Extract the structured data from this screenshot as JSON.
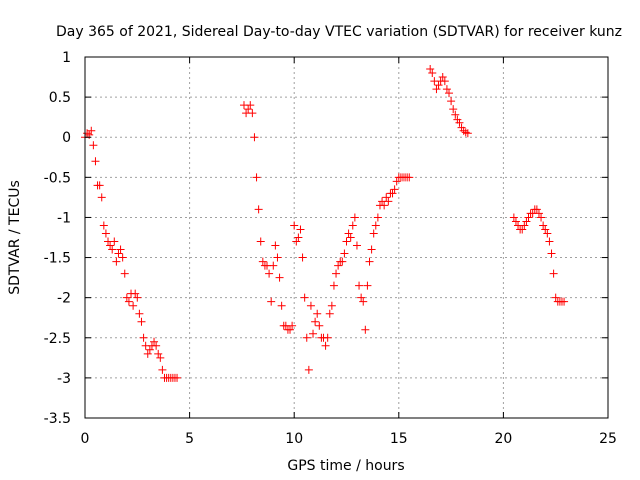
{
  "chart_data": {
    "type": "scatter",
    "title": "Day 365 of 2021, Sidereal Day-to-day VTEC variation (SDTVAR) for receiver kunz",
    "xlabel": "GPS time / hours",
    "ylabel": "SDTVAR / TECUs",
    "xlim": [
      0,
      25
    ],
    "ylim": [
      -3.5,
      1
    ],
    "xticks": [
      0,
      5,
      10,
      15,
      20,
      25
    ],
    "yticks": [
      1,
      0.5,
      0,
      -0.5,
      -1,
      -1.5,
      -2,
      -2.5,
      -3,
      -3.5
    ],
    "xtick_labels": [
      "0",
      "5",
      "10",
      "15",
      "20",
      "25"
    ],
    "ytick_labels": [
      "1",
      "0.5",
      "0",
      "-0.5",
      "-1",
      "-1.5",
      "-2",
      "-2.5",
      "-3",
      "-3.5"
    ],
    "grid": true,
    "marker": "plus",
    "color": "#ff0000",
    "series": [
      {
        "name": "segment-1",
        "x": [
          0.0,
          0.1,
          0.2,
          0.3,
          0.4,
          0.5,
          0.6,
          0.7,
          0.8,
          0.9,
          1.0,
          1.1,
          1.2,
          1.3,
          1.4,
          1.5,
          1.6,
          1.7,
          1.8,
          1.9,
          2.0,
          2.1,
          2.2,
          2.3,
          2.4,
          2.5,
          2.6,
          2.7,
          2.8,
          2.9,
          3.0,
          3.1,
          3.2,
          3.3,
          3.4,
          3.5,
          3.6,
          3.7,
          3.8,
          3.9,
          4.0,
          4.1,
          4.2,
          4.3,
          4.4
        ],
        "y": [
          0.0,
          0.05,
          0.03,
          0.08,
          -0.1,
          -0.3,
          -0.6,
          -0.6,
          -0.75,
          -1.1,
          -1.2,
          -1.3,
          -1.35,
          -1.4,
          -1.3,
          -1.55,
          -1.45,
          -1.4,
          -1.5,
          -1.7,
          -2.0,
          -2.05,
          -1.95,
          -2.1,
          -1.95,
          -2.0,
          -2.2,
          -2.3,
          -2.5,
          -2.6,
          -2.7,
          -2.65,
          -2.6,
          -2.55,
          -2.6,
          -2.7,
          -2.75,
          -2.9,
          -3.0,
          -3.0,
          -3.0,
          -3.0,
          -3.0,
          -3.0,
          -3.0
        ]
      },
      {
        "name": "segment-2",
        "x": [
          7.6,
          7.7,
          7.8,
          7.9,
          8.0,
          8.1,
          8.2,
          8.3,
          8.4,
          8.5,
          8.6,
          8.7,
          8.8,
          8.9,
          9.0,
          9.1,
          9.2,
          9.3,
          9.4,
          9.5,
          9.6,
          9.7,
          9.8,
          9.9,
          10.0,
          10.1,
          10.2,
          10.3,
          10.4,
          10.5,
          10.6,
          10.7,
          10.8,
          10.9,
          11.0,
          11.1,
          11.2,
          11.3,
          11.4,
          11.5,
          11.6,
          11.7,
          11.8,
          11.9,
          12.0,
          12.1,
          12.2,
          12.3,
          12.4,
          12.5,
          12.6,
          12.7,
          12.8,
          12.9,
          13.0,
          13.1,
          13.2,
          13.3,
          13.4,
          13.5,
          13.6,
          13.7,
          13.8,
          13.9,
          14.0,
          14.1,
          14.2,
          14.3,
          14.4,
          14.5,
          14.6,
          14.7,
          14.8,
          14.9,
          15.0,
          15.1,
          15.2,
          15.3,
          15.4,
          15.5
        ],
        "y": [
          0.4,
          0.3,
          0.35,
          0.4,
          0.3,
          0.0,
          -0.5,
          -0.9,
          -1.3,
          -1.55,
          -1.6,
          -1.6,
          -1.7,
          -2.05,
          -1.6,
          -1.35,
          -1.5,
          -1.75,
          -2.1,
          -2.35,
          -2.35,
          -2.4,
          -2.4,
          -2.35,
          -1.1,
          -1.3,
          -1.25,
          -1.15,
          -1.5,
          -2.0,
          -2.5,
          -2.9,
          -2.1,
          -2.45,
          -2.3,
          -2.2,
          -2.35,
          -2.5,
          -2.5,
          -2.6,
          -2.5,
          -2.2,
          -2.1,
          -1.85,
          -1.7,
          -1.6,
          -1.55,
          -1.55,
          -1.45,
          -1.3,
          -1.2,
          -1.25,
          -1.1,
          -1.0,
          -1.35,
          -1.85,
          -2.0,
          -2.05,
          -2.4,
          -1.85,
          -1.55,
          -1.4,
          -1.2,
          -1.1,
          -1.0,
          -0.85,
          -0.8,
          -0.85,
          -0.75,
          -0.8,
          -0.7,
          -0.7,
          -0.65,
          -0.55,
          -0.5,
          -0.5,
          -0.5,
          -0.5,
          -0.5,
          -0.5
        ]
      },
      {
        "name": "segment-3",
        "x": [
          16.5,
          16.6,
          16.7,
          16.8,
          16.9,
          17.0,
          17.1,
          17.2,
          17.3,
          17.4,
          17.5,
          17.6,
          17.7,
          17.8,
          17.9,
          18.0,
          18.1,
          18.2,
          18.3
        ],
        "y": [
          0.85,
          0.8,
          0.7,
          0.6,
          0.65,
          0.7,
          0.75,
          0.7,
          0.6,
          0.55,
          0.45,
          0.35,
          0.28,
          0.22,
          0.18,
          0.12,
          0.08,
          0.06,
          0.05
        ]
      },
      {
        "name": "segment-4",
        "x": [
          20.5,
          20.6,
          20.7,
          20.8,
          20.9,
          21.0,
          21.1,
          21.2,
          21.3,
          21.4,
          21.5,
          21.6,
          21.7,
          21.8,
          21.9,
          22.0,
          22.1,
          22.2,
          22.3,
          22.4,
          22.5,
          22.6,
          22.7,
          22.8,
          22.9
        ],
        "y": [
          -1.0,
          -1.05,
          -1.1,
          -1.15,
          -1.15,
          -1.1,
          -1.05,
          -1.0,
          -0.95,
          -0.95,
          -0.9,
          -0.9,
          -0.95,
          -1.0,
          -1.1,
          -1.15,
          -1.2,
          -1.3,
          -1.45,
          -1.7,
          -2.0,
          -2.05,
          -2.05,
          -2.05,
          -2.05
        ]
      }
    ]
  }
}
